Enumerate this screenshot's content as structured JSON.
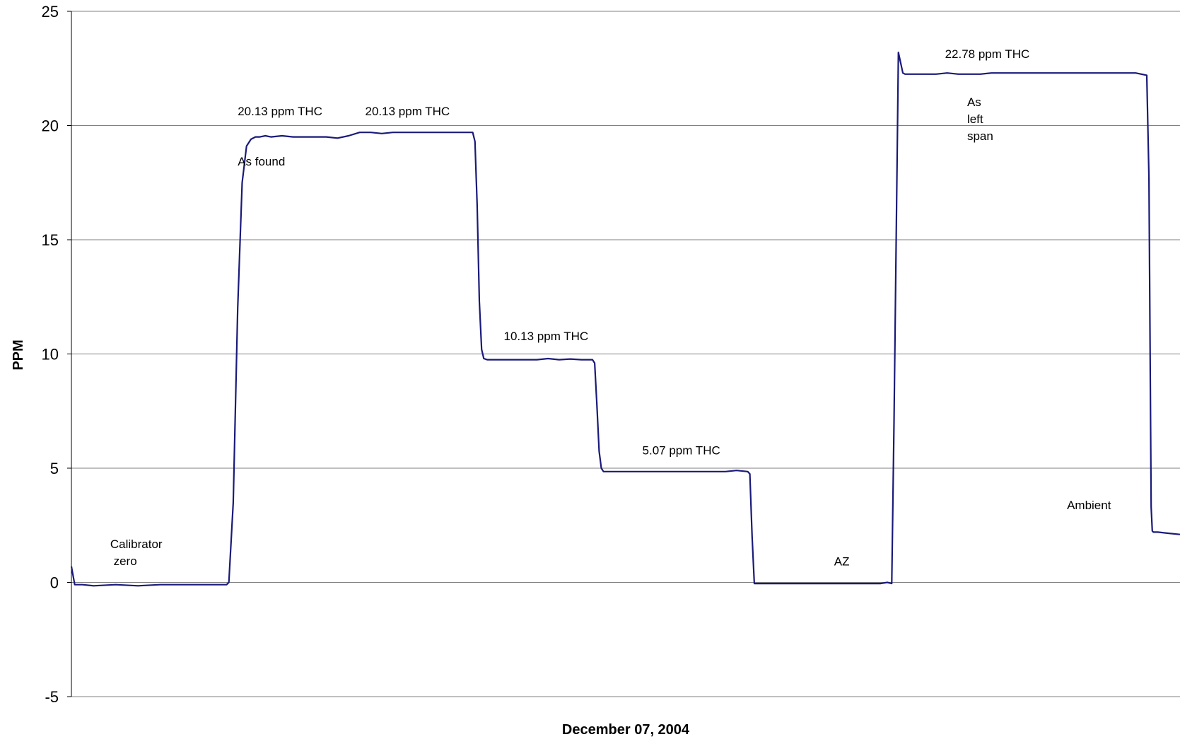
{
  "chart_data": {
    "type": "line",
    "title": "",
    "xlabel": "December 07, 2004",
    "ylabel": "PPM",
    "ylim": [
      -5,
      25
    ],
    "yticks": [
      -5,
      0,
      5,
      10,
      15,
      20,
      25
    ],
    "xlim": [
      0,
      1000
    ],
    "grid": true,
    "legend": "none",
    "line_color": "#1a1a7a",
    "series": [
      {
        "x": [
          0,
          3,
          5,
          10,
          20,
          40,
          60,
          80,
          100,
          120,
          130,
          140,
          142,
          146,
          150,
          154,
          158,
          162,
          166,
          170,
          175,
          180,
          190,
          200,
          210,
          220,
          230,
          240,
          250,
          260,
          270,
          280,
          290,
          300,
          310,
          320,
          330,
          340,
          350,
          360,
          362,
          364,
          366,
          368,
          370,
          372,
          375,
          380,
          390,
          400,
          410,
          420,
          430,
          440,
          450,
          460,
          470,
          472,
          474,
          476,
          478,
          480,
          482,
          485,
          490,
          500,
          510,
          520,
          530,
          540,
          550,
          560,
          570,
          580,
          590,
          600,
          610,
          612,
          614,
          616,
          618,
          620,
          625,
          630,
          640,
          650,
          660,
          670,
          680,
          690,
          700,
          710,
          720,
          730,
          736,
          740,
          742,
          746,
          750,
          752,
          754,
          756,
          760,
          770,
          780,
          790,
          800,
          810,
          820,
          830,
          835,
          840,
          845,
          850,
          860,
          870,
          880,
          890,
          900,
          910,
          920,
          930,
          940,
          950,
          960,
          970,
          972,
          974,
          975,
          976,
          978,
          980,
          990,
          1000
        ],
        "y": [
          0.7,
          -0.1,
          -0.1,
          -0.1,
          -0.15,
          -0.1,
          -0.15,
          -0.1,
          -0.1,
          -0.1,
          -0.1,
          -0.1,
          0.0,
          3.5,
          12.0,
          17.5,
          19.1,
          19.4,
          19.5,
          19.5,
          19.55,
          19.5,
          19.55,
          19.5,
          19.5,
          19.5,
          19.5,
          19.45,
          19.55,
          19.7,
          19.7,
          19.65,
          19.7,
          19.7,
          19.7,
          19.7,
          19.7,
          19.7,
          19.7,
          19.7,
          19.7,
          19.3,
          16.5,
          12.3,
          10.2,
          9.8,
          9.75,
          9.75,
          9.75,
          9.75,
          9.75,
          9.75,
          9.8,
          9.75,
          9.78,
          9.75,
          9.75,
          9.6,
          7.8,
          5.75,
          5.0,
          4.85,
          4.85,
          4.85,
          4.85,
          4.85,
          4.85,
          4.85,
          4.85,
          4.85,
          4.85,
          4.85,
          4.85,
          4.85,
          4.85,
          4.9,
          4.85,
          4.75,
          2.0,
          -0.05,
          -0.05,
          -0.05,
          -0.05,
          -0.05,
          -0.05,
          -0.05,
          -0.05,
          -0.05,
          -0.05,
          -0.05,
          -0.05,
          -0.05,
          -0.05,
          -0.05,
          0.0,
          -0.05,
          7.0,
          23.2,
          22.3,
          22.25,
          22.25,
          22.25,
          22.25,
          22.25,
          22.25,
          22.3,
          22.25,
          22.25,
          22.25,
          22.3,
          22.3,
          22.3,
          22.3,
          22.3,
          22.3,
          22.3,
          22.3,
          22.3,
          22.3,
          22.3,
          22.3,
          22.3,
          22.3,
          22.3,
          22.3,
          22.2,
          17.7,
          3.3,
          2.25,
          2.2,
          2.2,
          2.2,
          2.15,
          2.1
        ]
      }
    ],
    "annotations": [
      {
        "lines": [
          "Calibrator",
          " zero"
        ],
        "x": 35,
        "y": 1.5
      },
      {
        "lines": [
          "20.13 ppm THC"
        ],
        "x": 150,
        "y": 20.45
      },
      {
        "lines": [
          "20.13 ppm THC"
        ],
        "x": 265,
        "y": 20.45
      },
      {
        "lines": [
          "As found"
        ],
        "x": 150,
        "y": 18.25
      },
      {
        "lines": [
          "10.13 ppm THC"
        ],
        "x": 390,
        "y": 10.6
      },
      {
        "lines": [
          "5.07 ppm THC"
        ],
        "x": 515,
        "y": 5.6
      },
      {
        "lines": [
          "AZ"
        ],
        "x": 688,
        "y": 0.75
      },
      {
        "lines": [
          "22.78 ppm THC"
        ],
        "x": 788,
        "y": 22.95
      },
      {
        "lines": [
          "As",
          "left",
          "span"
        ],
        "x": 808,
        "y": 20.85
      },
      {
        "lines": [
          "Ambient"
        ],
        "x": 898,
        "y": 3.2
      }
    ]
  }
}
